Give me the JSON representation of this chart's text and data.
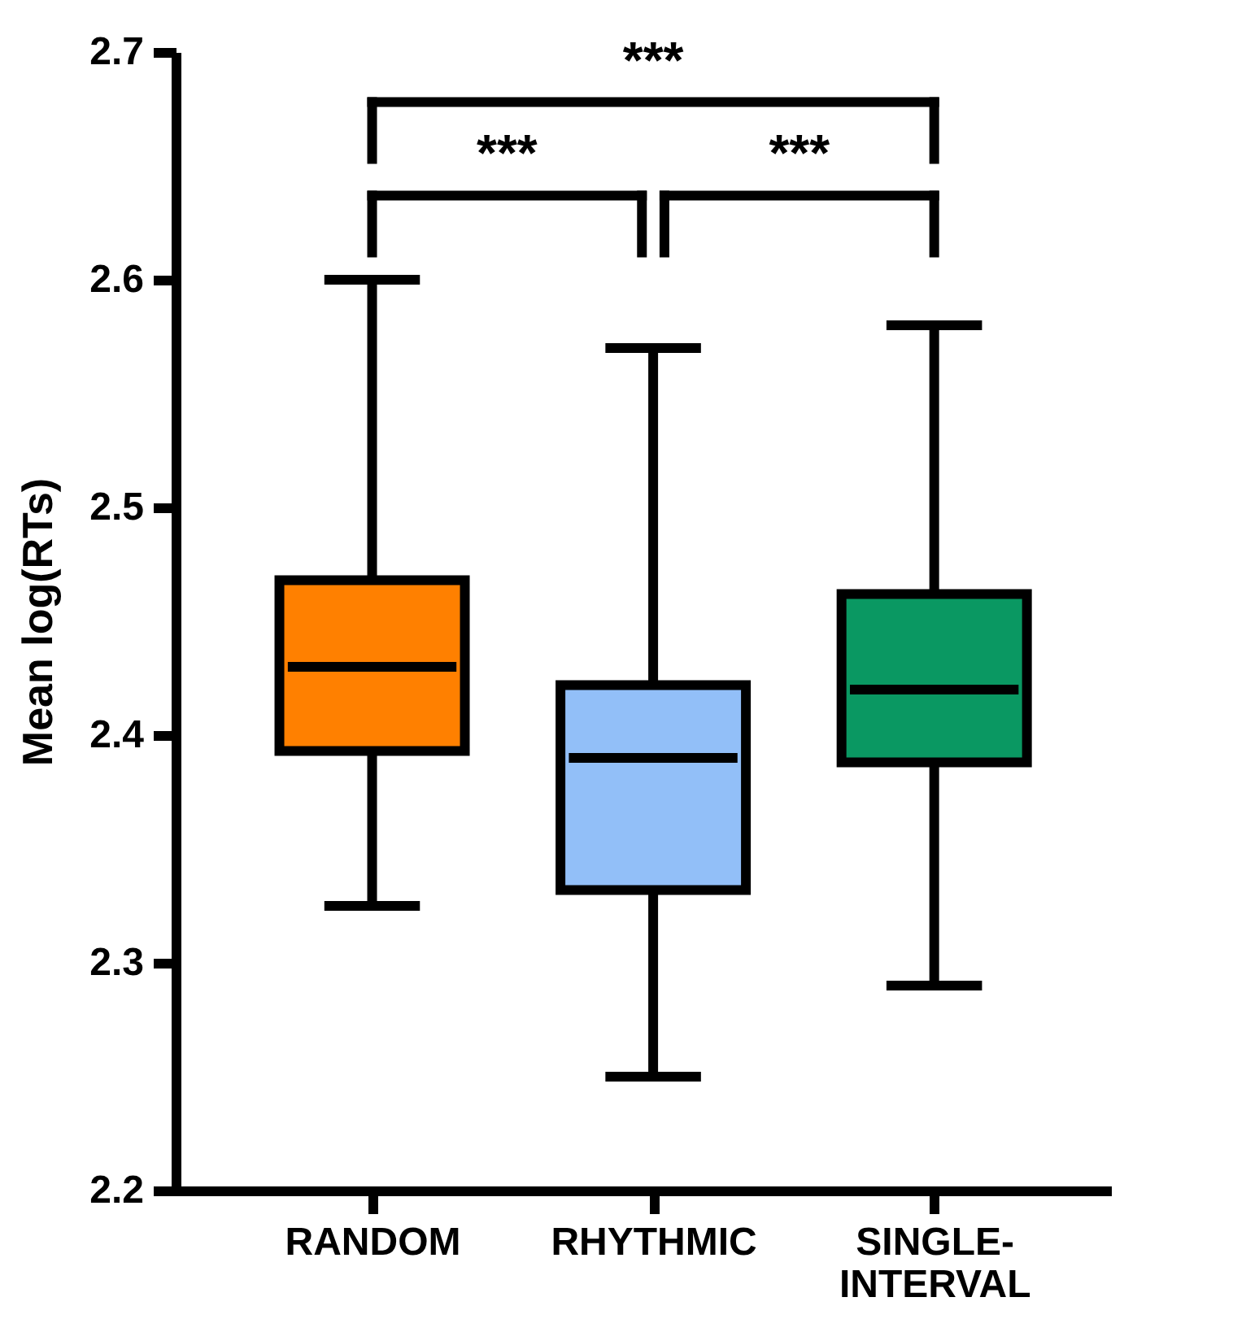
{
  "chart_data": {
    "type": "box",
    "ylabel": "Mean log(RTs)",
    "categories": [
      "RANDOM",
      "RHYTHMIC",
      "SINGLE-\nINTERVAL"
    ],
    "colors": [
      "#ff8000",
      "#92bff8",
      "#0a9862"
    ],
    "boxes": [
      {
        "low": 2.325,
        "q1": 2.393,
        "median": 2.43,
        "q3": 2.468,
        "high": 2.6
      },
      {
        "low": 2.25,
        "q1": 2.332,
        "median": 2.39,
        "q3": 2.422,
        "high": 2.57
      },
      {
        "low": 2.29,
        "q1": 2.388,
        "median": 2.42,
        "q3": 2.462,
        "high": 2.58
      }
    ],
    "ylim": [
      2.2,
      2.7
    ],
    "yticks": [
      2.2,
      2.3,
      2.4,
      2.5,
      2.6,
      2.7
    ],
    "grid": false,
    "annotations": [
      "***",
      "***",
      "***"
    ]
  }
}
